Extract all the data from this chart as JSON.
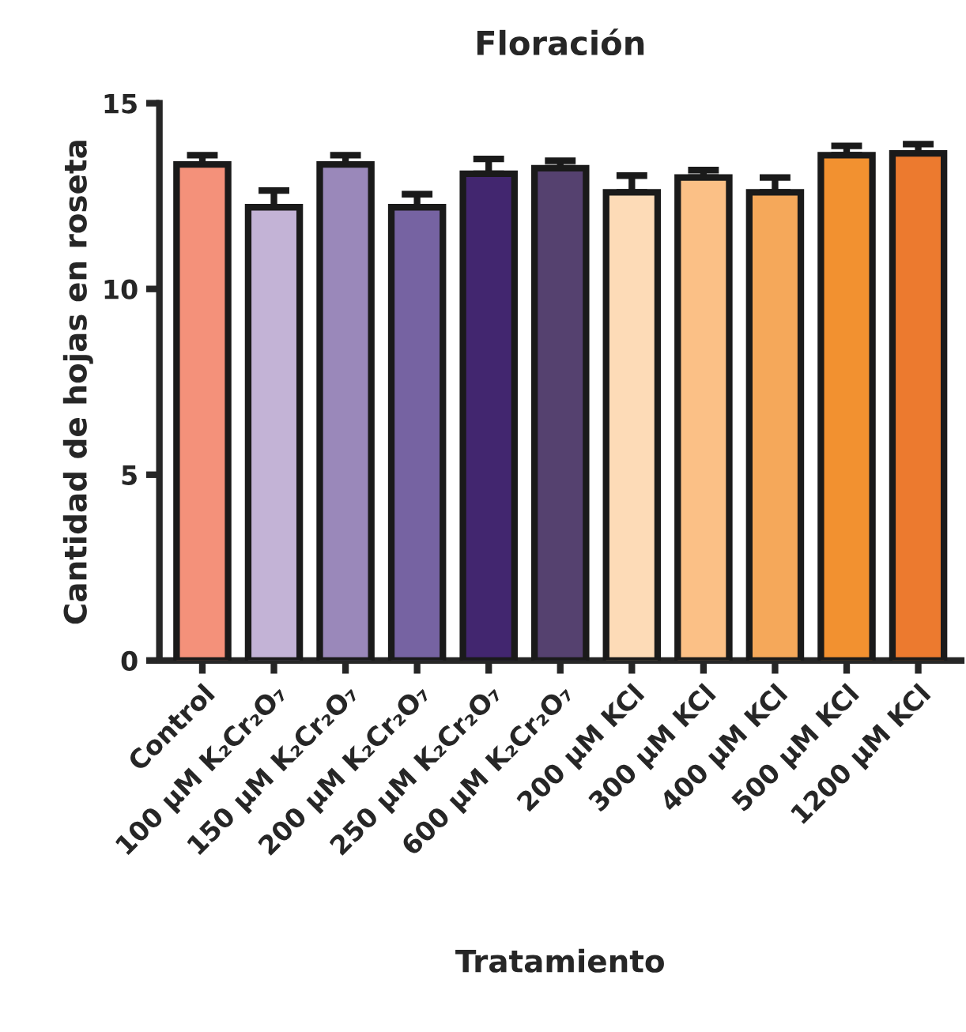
{
  "chart_data": {
    "type": "bar",
    "title": "Floración",
    "xlabel": "Tratamiento",
    "ylabel": "Cantidad de hojas en roseta",
    "categories": [
      "Control",
      "100 µM K₂Cr₂O₇",
      "150 µM K₂Cr₂O₇",
      "200 µM K₂Cr₂O₇",
      "250 µM K₂Cr₂O₇",
      "600 µM K₂Cr₂O₇",
      "200 µM KCl",
      "300 µM KCl",
      "400 µM KCl",
      "500 µM KCl",
      "1200 µM KCl"
    ],
    "values": [
      13.35,
      12.2,
      13.35,
      12.2,
      13.1,
      13.25,
      12.6,
      13.0,
      12.6,
      13.6,
      13.65
    ],
    "errors": [
      [
        13.35,
        13.6
      ],
      [
        12.2,
        12.65
      ],
      [
        13.35,
        13.6
      ],
      [
        12.2,
        12.55
      ],
      [
        13.1,
        13.5
      ],
      [
        13.25,
        13.45
      ],
      [
        12.6,
        13.05
      ],
      [
        13.0,
        13.2
      ],
      [
        12.6,
        13.0
      ],
      [
        13.6,
        13.85
      ],
      [
        13.65,
        13.9
      ]
    ],
    "colors": [
      "#f4917a",
      "#c3b3d6",
      "#9a88ba",
      "#7663a2",
      "#42266f",
      "#55416f",
      "#fddbb7",
      "#fbc086",
      "#f5a85a",
      "#f29130",
      "#ec7a2f"
    ],
    "ylim": [
      0,
      15
    ],
    "yticks": [
      0,
      5,
      10,
      15
    ],
    "grid": false,
    "legend": false
  }
}
